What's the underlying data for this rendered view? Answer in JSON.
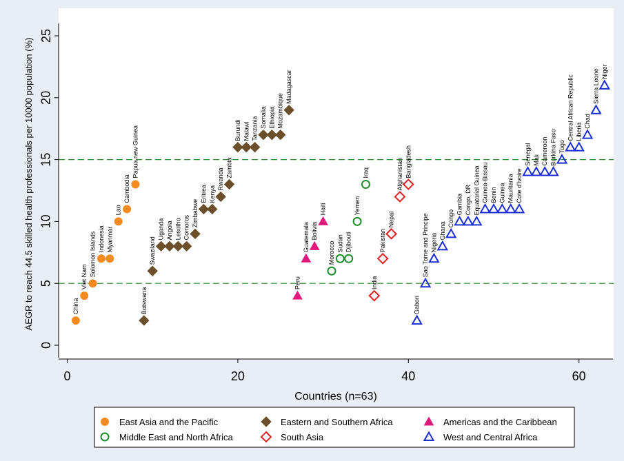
{
  "chart_data": {
    "type": "scatter",
    "title": "",
    "xlabel": "Countries (n=63)",
    "ylabel": "AEGR to reach 44.5 skilled health professionals per 10000 population (%)",
    "xlim": [
      -1,
      64
    ],
    "ylim": [
      -1,
      26
    ],
    "xticks": [
      0,
      20,
      40,
      60
    ],
    "yticks": [
      0,
      5,
      10,
      15,
      20,
      25
    ],
    "reference_lines": [
      5,
      15
    ],
    "grid": false,
    "legend_position": "bottom",
    "series": [
      {
        "name": "East Asia and the Pacific",
        "marker": "circle-filled",
        "color": "#f58a1f",
        "points": [
          {
            "x": 1,
            "y": 2,
            "label": "China"
          },
          {
            "x": 2,
            "y": 4,
            "label": "Viet Nam"
          },
          {
            "x": 3,
            "y": 5,
            "label": "Solomon Islands"
          },
          {
            "x": 4,
            "y": 7,
            "label": "Indonesia"
          },
          {
            "x": 5,
            "y": 7,
            "label": "Myanmar"
          },
          {
            "x": 6,
            "y": 10,
            "label": "Lao"
          },
          {
            "x": 7,
            "y": 11,
            "label": "Cambodia"
          },
          {
            "x": 8,
            "y": 13,
            "label": "Papua new Guinea"
          }
        ]
      },
      {
        "name": "Eastern and Southern Africa",
        "marker": "diamond-filled",
        "color": "#6b4f2a",
        "points": [
          {
            "x": 9,
            "y": 2,
            "label": "Botswana"
          },
          {
            "x": 10,
            "y": 6,
            "label": "Swaziland"
          },
          {
            "x": 11,
            "y": 8,
            "label": "Uganda"
          },
          {
            "x": 12,
            "y": 8,
            "label": "Angola"
          },
          {
            "x": 13,
            "y": 8,
            "label": "Lesotho"
          },
          {
            "x": 14,
            "y": 8,
            "label": "Comoros"
          },
          {
            "x": 15,
            "y": 9,
            "label": "Zimbabwe"
          },
          {
            "x": 16,
            "y": 11,
            "label": "Eritrea"
          },
          {
            "x": 17,
            "y": 11,
            "label": "Kenya"
          },
          {
            "x": 18,
            "y": 12,
            "label": "Rwanda"
          },
          {
            "x": 19,
            "y": 13,
            "label": "Zambia"
          },
          {
            "x": 20,
            "y": 16,
            "label": "Burundi"
          },
          {
            "x": 21,
            "y": 16,
            "label": "Malawi"
          },
          {
            "x": 22,
            "y": 16,
            "label": "Tanzania"
          },
          {
            "x": 23,
            "y": 17,
            "label": "Somalia"
          },
          {
            "x": 24,
            "y": 17,
            "label": "Ethiopia"
          },
          {
            "x": 25,
            "y": 17,
            "label": "Mozambique"
          },
          {
            "x": 26,
            "y": 19,
            "label": "Madagascar"
          }
        ]
      },
      {
        "name": "Americas and the Caribbean",
        "marker": "triangle-filled",
        "color": "#e0197d",
        "points": [
          {
            "x": 27,
            "y": 4,
            "label": "Peru"
          },
          {
            "x": 28,
            "y": 7,
            "label": "Guatemala"
          },
          {
            "x": 29,
            "y": 8,
            "label": "Bolivia"
          },
          {
            "x": 30,
            "y": 10,
            "label": "Haiti"
          }
        ]
      },
      {
        "name": "Middle East and North Africa",
        "marker": "circle-open",
        "color": "#1e8c2a",
        "points": [
          {
            "x": 31,
            "y": 6,
            "label": "Morocco"
          },
          {
            "x": 32,
            "y": 7,
            "label": "Sudan"
          },
          {
            "x": 33,
            "y": 7,
            "label": "Djibouti"
          },
          {
            "x": 34,
            "y": 10,
            "label": "Yemen"
          },
          {
            "x": 35,
            "y": 13,
            "label": "Iraq"
          }
        ]
      },
      {
        "name": "South Asia",
        "marker": "diamond-open",
        "color": "#e02020",
        "points": [
          {
            "x": 36,
            "y": 4,
            "label": "India"
          },
          {
            "x": 37,
            "y": 7,
            "label": "Pakistan"
          },
          {
            "x": 38,
            "y": 9,
            "label": "Nepal"
          },
          {
            "x": 39,
            "y": 12,
            "label": "Afghanistan"
          },
          {
            "x": 40,
            "y": 13,
            "label": "Bangladesh"
          }
        ]
      },
      {
        "name": "West and Central Africa",
        "marker": "triangle-open",
        "color": "#1a2fd6",
        "points": [
          {
            "x": 41,
            "y": 2,
            "label": "Gabon"
          },
          {
            "x": 42,
            "y": 5,
            "label": "Sao Tome and Principe"
          },
          {
            "x": 43,
            "y": 7,
            "label": "Nigeria"
          },
          {
            "x": 44,
            "y": 8,
            "label": "Ghana"
          },
          {
            "x": 45,
            "y": 9,
            "label": "Congo"
          },
          {
            "x": 46,
            "y": 10,
            "label": "Gambia"
          },
          {
            "x": 47,
            "y": 10,
            "label": "Congo, DR"
          },
          {
            "x": 48,
            "y": 10,
            "label": "Equatorial Guinea"
          },
          {
            "x": 49,
            "y": 11,
            "label": "Guinea-Bissau"
          },
          {
            "x": 50,
            "y": 11,
            "label": "Benin"
          },
          {
            "x": 51,
            "y": 11,
            "label": "Guinea"
          },
          {
            "x": 52,
            "y": 11,
            "label": "Mauritania"
          },
          {
            "x": 53,
            "y": 11,
            "label": "Cote d'Ivoire"
          },
          {
            "x": 54,
            "y": 14,
            "label": "Senegal"
          },
          {
            "x": 55,
            "y": 14,
            "label": "Mali"
          },
          {
            "x": 56,
            "y": 14,
            "label": "Cameroon"
          },
          {
            "x": 57,
            "y": 14,
            "label": "Burkina Faso"
          },
          {
            "x": 58,
            "y": 15,
            "label": "Togo"
          },
          {
            "x": 59,
            "y": 16,
            "label": "Central African Republic"
          },
          {
            "x": 60,
            "y": 16,
            "label": "Liberia"
          },
          {
            "x": 61,
            "y": 17,
            "label": "Chad"
          },
          {
            "x": 62,
            "y": 19,
            "label": "Sierra Leone"
          },
          {
            "x": 63,
            "y": 21,
            "label": "Niger"
          }
        ]
      }
    ]
  }
}
